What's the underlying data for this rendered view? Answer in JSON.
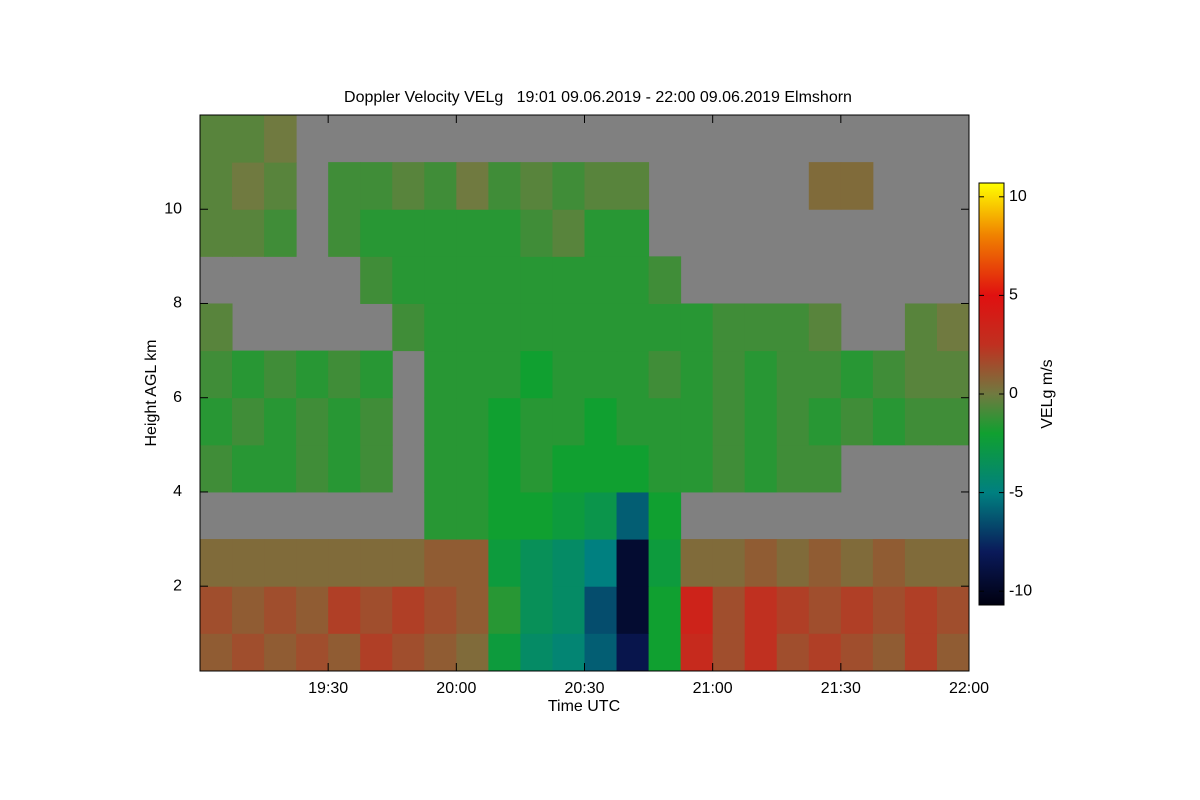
{
  "chart_data": {
    "type": "heatmap",
    "title": "Doppler Velocity VELg   19:01 09.06.2019 - 22:00 09.06.2019 Elmshorn",
    "x_label": "Time UTC",
    "y_label": "Height AGL km",
    "colorbar_label": "VELg m/s",
    "xlim": [
      19.0,
      22.0
    ],
    "ylim": [
      0.2,
      12.0
    ],
    "xticks": [
      {
        "value": 19.5,
        "label": "19:30"
      },
      {
        "value": 20.0,
        "label": "20:00"
      },
      {
        "value": 20.5,
        "label": "20:30"
      },
      {
        "value": 21.0,
        "label": "21:00"
      },
      {
        "value": 21.5,
        "label": "21:30"
      },
      {
        "value": 22.0,
        "label": "22:00"
      }
    ],
    "yticks": [
      2,
      4,
      6,
      8,
      10
    ],
    "clim": [
      -10.7,
      10.7
    ],
    "cticks": [
      -10,
      -5,
      0,
      5,
      10
    ],
    "nan_color": "#808080",
    "colorscale": [
      [
        -10.7,
        "#000010"
      ],
      [
        -8,
        "#0a1a5a"
      ],
      [
        -5,
        "#008080"
      ],
      [
        -2,
        "#10a030"
      ],
      [
        0,
        "#707a40"
      ],
      [
        2.5,
        "#c03020"
      ],
      [
        5,
        "#e01010"
      ],
      [
        8,
        "#f08000"
      ],
      [
        10.7,
        "#ffff00"
      ]
    ],
    "x_edges": [
      19.0,
      19.125,
      19.25,
      19.375,
      19.5,
      19.625,
      19.75,
      19.875,
      20.0,
      20.125,
      20.25,
      20.375,
      20.5,
      20.625,
      20.75,
      20.875,
      21.0,
      21.125,
      21.25,
      21.375,
      21.5,
      21.625,
      21.75,
      21.875,
      22.0
    ],
    "y_edges": [
      0.2,
      1,
      2,
      3,
      4,
      5,
      6,
      7,
      8,
      9,
      10,
      11,
      12
    ],
    "values": [
      [
        1,
        1.5,
        1,
        1.5,
        1,
        2,
        1.5,
        1,
        0.5,
        -2.5,
        -4,
        -4.5,
        -6,
        -8.5,
        -2,
        3,
        1.5,
        2.5,
        1.5,
        2,
        1.5,
        1,
        2,
        1
      ],
      [
        1.5,
        1,
        1.5,
        1,
        2,
        1.5,
        2,
        1.5,
        1,
        -1.5,
        -3.5,
        -4,
        -6.5,
        -9.5,
        -2,
        3.5,
        1.5,
        2.5,
        2,
        1.5,
        2,
        1.5,
        2,
        1.5
      ],
      [
        0.5,
        0.5,
        0.5,
        0.5,
        0.5,
        0.5,
        0.5,
        1,
        1,
        -2.5,
        -3.5,
        -4,
        -5,
        -9.5,
        -2.5,
        0.5,
        0.5,
        1,
        0.5,
        1,
        0.5,
        1,
        0.5,
        0.5
      ],
      [
        null,
        null,
        null,
        null,
        null,
        null,
        null,
        -1.5,
        -1.5,
        -2,
        -2,
        -2.5,
        -3,
        -6,
        -2,
        null,
        null,
        null,
        null,
        null,
        null,
        null,
        null,
        null
      ],
      [
        -1,
        -1.5,
        -1.5,
        -1,
        -1.5,
        -1,
        null,
        -1.5,
        -1.5,
        -2,
        -1.5,
        -2,
        -2,
        -2,
        -1.5,
        -1.5,
        -1,
        -1.5,
        -1,
        -1,
        null,
        null,
        null,
        null
      ],
      [
        -1.5,
        -1,
        -1.5,
        -1,
        -1.5,
        -1,
        null,
        -1.5,
        -1.5,
        -2,
        -1.5,
        -1.5,
        -2,
        -1.5,
        -1.5,
        -1.5,
        -1,
        -1.5,
        -1,
        -1.5,
        -1,
        -1.5,
        -1,
        -1
      ],
      [
        -1,
        -1.5,
        -1,
        -1.5,
        -1,
        -1.5,
        null,
        -1.5,
        -1.5,
        -1.5,
        -2,
        -1.5,
        -1.5,
        -1.5,
        -1,
        -1.5,
        -1,
        -1.5,
        -1,
        -1,
        -1.5,
        -1,
        -0.5,
        -0.5
      ],
      [
        -0.5,
        null,
        null,
        null,
        null,
        null,
        -1,
        -1.5,
        -1.5,
        -1.5,
        -1.5,
        -1.5,
        -1.5,
        -1.5,
        -1.5,
        -1.5,
        -1,
        -1,
        -1,
        -0.5,
        null,
        null,
        -0.5,
        0
      ],
      [
        null,
        null,
        null,
        null,
        null,
        -1,
        -1.5,
        -1.5,
        -1.5,
        -1.5,
        -1.5,
        -1.5,
        -1.5,
        -1.5,
        -1,
        null,
        null,
        null,
        null,
        null,
        null,
        null,
        null,
        null
      ],
      [
        -0.5,
        -0.5,
        -1,
        null,
        -1,
        -1.5,
        -1.5,
        -1.5,
        -1.5,
        -1.5,
        -1,
        -0.5,
        -1.5,
        -1.5,
        null,
        null,
        null,
        null,
        null,
        null,
        null,
        null,
        null,
        null
      ],
      [
        -0.5,
        0,
        -0.5,
        null,
        -1,
        -1,
        -0.5,
        -1,
        0,
        -1,
        -0.5,
        -1,
        -0.5,
        -0.5,
        null,
        null,
        null,
        null,
        null,
        0.5,
        0.5,
        null,
        null,
        null
      ],
      [
        -0.5,
        -0.5,
        0,
        null,
        null,
        null,
        null,
        null,
        null,
        null,
        null,
        null,
        null,
        null,
        null,
        null,
        null,
        null,
        null,
        null,
        null,
        null,
        null,
        null
      ]
    ]
  }
}
